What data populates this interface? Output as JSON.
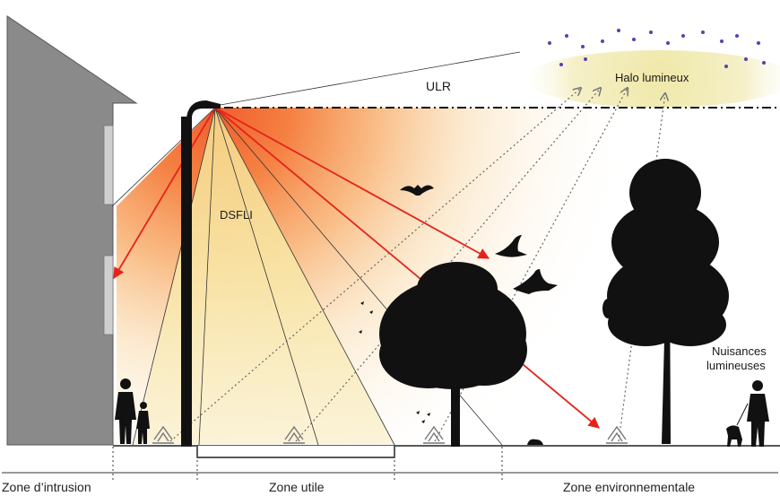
{
  "labels": {
    "ulr": "ULR",
    "halo": "Halo lumineux",
    "dsfli": "DSFLI",
    "nuisances_line1": "Nuisances",
    "nuisances_line2": "lumineuses"
  },
  "zones": {
    "intrusion": "Zone d’intrusion",
    "utile": "Zone utile",
    "environnementale": "Zone environnementale"
  },
  "colors": {
    "light_core": "#f06a2a",
    "light_warm": "#f7b36a",
    "light_yellow": "#f5e29a",
    "halo": "#f3edb8",
    "arrow_red": "#e5231b",
    "building": "#8a8a8a",
    "silhouette": "#111111",
    "stars": "#5a3fb0"
  },
  "icons": [
    "star-icon",
    "bat-icon",
    "bird-icon",
    "owl-icon",
    "dog-icon",
    "flower-icon",
    "person-icon"
  ]
}
